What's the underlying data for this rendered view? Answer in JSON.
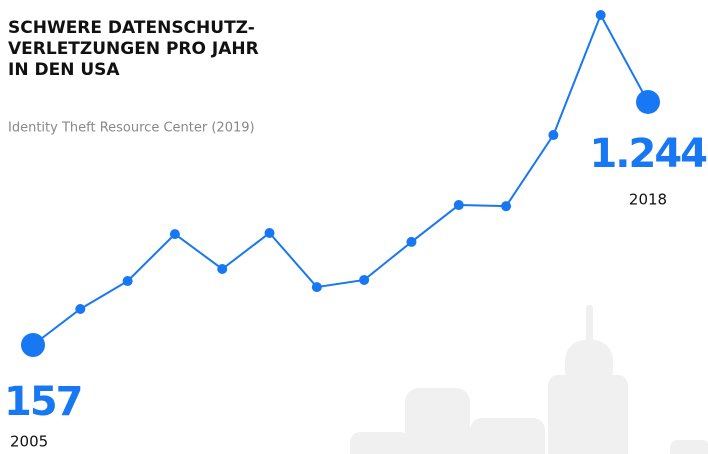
{
  "chart_data": {
    "type": "line",
    "title": [
      "SCHWERE DATENSCHUTZ-",
      "VERLETZUNGEN PRO JAHR",
      "IN DEN USA"
    ],
    "subtitle": "Identity Theft Resource Center (2019)",
    "categories": [
      "2005",
      null,
      null,
      null,
      null,
      null,
      null,
      null,
      null,
      null,
      null,
      null,
      null,
      "2018"
    ],
    "series": [
      {
        "color": "#1877f2",
        "values": [
          157,
          318,
          443,
          653,
          497,
          658,
          416,
          448,
          618,
          783,
          778,
          1096,
          1633,
          1244
        ],
        "value_labels": [
          "157",
          null,
          null,
          null,
          null,
          null,
          null,
          null,
          null,
          null,
          null,
          null,
          null,
          "1.244"
        ]
      }
    ]
  }
}
